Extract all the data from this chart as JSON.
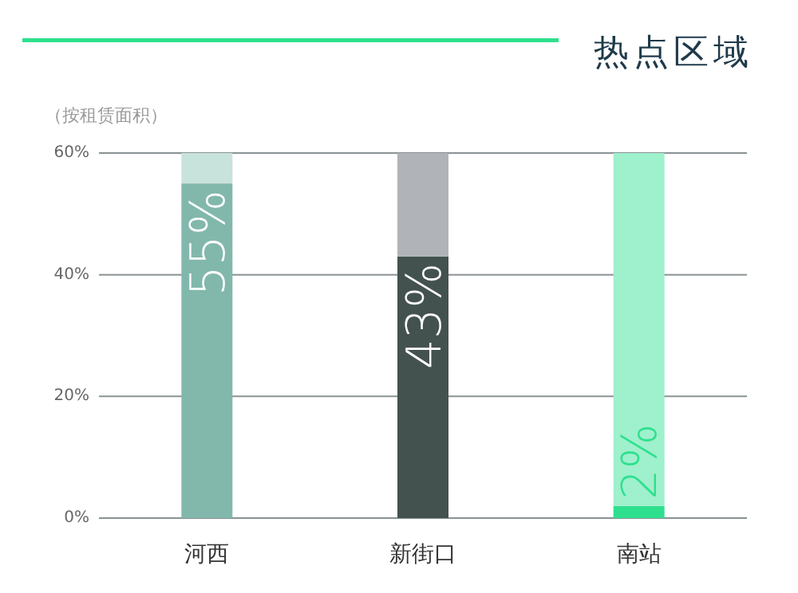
{
  "chart_data": {
    "type": "bar",
    "title": "热点区域",
    "ylabel": "（按租赁面积）",
    "categories": [
      "河西",
      "新街口",
      "南站"
    ],
    "stacked": true,
    "series": [
      {
        "colors": [
          "#82b8ac",
          "#44524f",
          "#2ee08e"
        ],
        "values": [
          55,
          43,
          2
        ],
        "value_labels": [
          "55%",
          "43%",
          "2%"
        ]
      },
      {
        "colors": [
          "#c8e2dc",
          "#b0b3b8",
          "#9ff0cc"
        ],
        "values": [
          5,
          17,
          58
        ]
      }
    ],
    "ylim": [
      0,
      60
    ],
    "yticks": [
      {
        "value": 0,
        "label": "0%"
      },
      {
        "value": 20,
        "label": "20%"
      },
      {
        "value": 40,
        "label": "40%"
      },
      {
        "value": 60,
        "label": "60%"
      }
    ],
    "grid": "y"
  }
}
